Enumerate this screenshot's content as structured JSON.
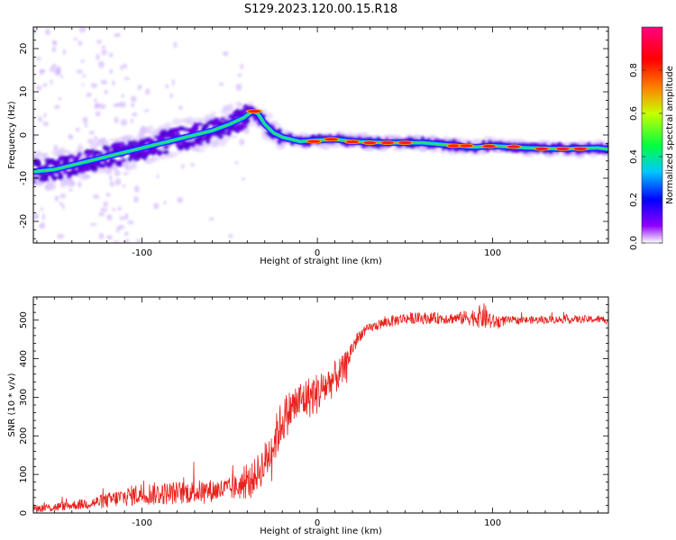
{
  "title": "S129.2023.120.00.15.R18",
  "chart_data": [
    {
      "type": "heatmap",
      "xlabel": "Height of straight line (km)",
      "ylabel": "Frequency (Hz)",
      "xlim": [
        -162,
        166
      ],
      "ylim": [
        -25,
        25
      ],
      "xticks": [
        -100,
        0,
        100
      ],
      "yticks": [
        -20,
        -10,
        0,
        10,
        20
      ],
      "colorbar": {
        "label": "Normalized spectral amplitude",
        "range": [
          0,
          1
        ],
        "ticks": [
          "0.0",
          "0.2",
          "0.4",
          "0.6",
          "0.8"
        ],
        "colormap": [
          "#ffffff",
          "#7f00ff",
          "#0000ff",
          "#00c8ff",
          "#00ff40",
          "#c8ff00",
          "#ff8000",
          "#ff0000",
          "#ff0080"
        ]
      },
      "ridge": {
        "x": [
          -162,
          -150,
          -140,
          -130,
          -120,
          -110,
          -100,
          -90,
          -80,
          -70,
          -60,
          -50,
          -42,
          -37,
          -34,
          -30,
          -25,
          -20,
          -15,
          -10,
          0,
          10,
          20,
          40,
          60,
          80,
          90,
          100,
          120,
          140,
          160,
          166
        ],
        "y": [
          -8.5,
          -8,
          -7,
          -6,
          -5,
          -4,
          -3,
          -2,
          -1,
          0,
          1,
          2.5,
          4,
          5.5,
          5,
          2.5,
          0.5,
          -0.5,
          -1,
          -1.5,
          -1.2,
          -1,
          -1.5,
          -1.8,
          -1.8,
          -2.5,
          -2.8,
          -2.5,
          -3,
          -3.2,
          -3,
          -3.3
        ]
      }
    },
    {
      "type": "line",
      "xlabel": "Height of straight line (km)",
      "ylabel": "SNR (10 * v/v)",
      "xlim": [
        -162,
        166
      ],
      "ylim": [
        0,
        560
      ],
      "xticks": [
        -100,
        0,
        100
      ],
      "yticks": [
        0,
        100,
        200,
        300,
        400,
        500
      ],
      "series": [
        {
          "color": "#e8211c",
          "x": [
            -162,
            -150,
            -140,
            -130,
            -120,
            -110,
            -100,
            -90,
            -80,
            -70,
            -60,
            -50,
            -40,
            -35,
            -30,
            -25,
            -20,
            -15,
            -10,
            -5,
            0,
            5,
            10,
            15,
            20,
            25,
            30,
            40,
            50,
            60,
            70,
            80,
            90,
            95,
            100,
            110,
            120,
            140,
            160,
            166
          ],
          "values": [
            12,
            15,
            20,
            25,
            32,
            42,
            50,
            50,
            52,
            55,
            58,
            62,
            75,
            100,
            130,
            180,
            240,
            270,
            290,
            300,
            310,
            330,
            350,
            370,
            430,
            465,
            480,
            495,
            505,
            505,
            505,
            505,
            508,
            510,
            495,
            500,
            500,
            502,
            502,
            500
          ],
          "noise": [
            10,
            12,
            12,
            15,
            20,
            25,
            30,
            30,
            30,
            30,
            30,
            30,
            40,
            45,
            55,
            60,
            60,
            55,
            55,
            55,
            55,
            50,
            45,
            40,
            25,
            15,
            12,
            15,
            15,
            15,
            15,
            15,
            25,
            35,
            20,
            10,
            10,
            10,
            10,
            10
          ]
        }
      ]
    }
  ]
}
